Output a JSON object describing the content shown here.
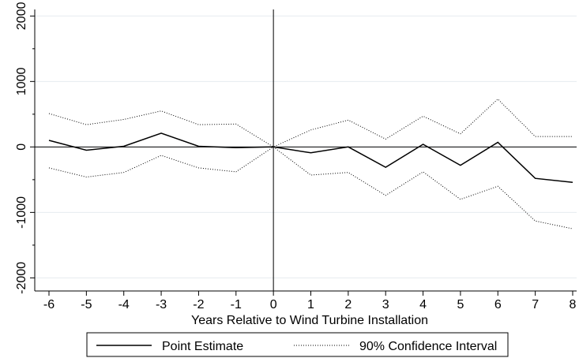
{
  "chart_data": {
    "type": "line",
    "title": "",
    "xlabel": "Years Relative to Wind Turbine Installation",
    "ylabel": "",
    "x": [
      -6,
      -5,
      -4,
      -3,
      -2,
      -1,
      0,
      1,
      2,
      3,
      4,
      5,
      6,
      7,
      8
    ],
    "xticks": [
      "-6",
      "-5",
      "-4",
      "-3",
      "-2",
      "-1",
      "0",
      "1",
      "2",
      "3",
      "4",
      "5",
      "6",
      "7",
      "8"
    ],
    "yticks": [
      "-2000",
      "-1000",
      "0",
      "1000",
      "2000"
    ],
    "xlim": [
      -6,
      8
    ],
    "ylim": [
      -2200,
      2100
    ],
    "grid": "horizontal",
    "reference_lines": {
      "x": 0,
      "y": 0
    },
    "legend_position": "bottom",
    "series": [
      {
        "name": "Point Estimate",
        "style": "solid",
        "color": "#000000",
        "values": [
          100,
          -50,
          10,
          210,
          10,
          -10,
          0,
          -90,
          0,
          -310,
          40,
          -280,
          70,
          -480,
          -540
        ]
      },
      {
        "name": "90% Confidence Interval",
        "style": "dotted",
        "color": "#000000",
        "values": [
          510,
          340,
          420,
          550,
          340,
          350,
          0,
          260,
          410,
          120,
          470,
          200,
          730,
          160,
          160
        ]
      },
      {
        "name": "",
        "style": "dotted",
        "color": "#000000",
        "values": [
          -320,
          -460,
          -390,
          -130,
          -320,
          -380,
          0,
          -430,
          -390,
          -740,
          -380,
          -800,
          -600,
          -1130,
          -1250
        ]
      }
    ]
  }
}
